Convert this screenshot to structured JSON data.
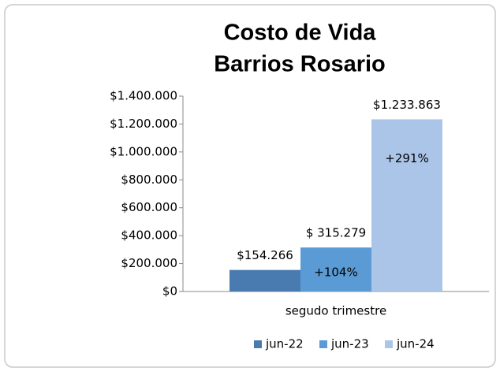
{
  "chart_data": {
    "type": "bar",
    "title": [
      "Costo de Vida",
      "Barrios Rosario"
    ],
    "categories": [
      "segudo trimestre"
    ],
    "series": [
      {
        "name": "jun-22",
        "color": "#4a7bb0",
        "values": [
          154266
        ],
        "value_labels": [
          "$154.266"
        ]
      },
      {
        "name": "jun-23",
        "color": "#5b9bd5",
        "values": [
          315279
        ],
        "value_labels": [
          "$ 315.279"
        ]
      },
      {
        "name": "jun-24",
        "color": "#abc5e8",
        "values": [
          1233863
        ],
        "value_labels": [
          "$1.233.863"
        ]
      }
    ],
    "annotations": [
      "+104%",
      "+291%"
    ],
    "ylim": [
      0,
      1400000
    ],
    "yticks": [
      {
        "value": 0,
        "label": "$0"
      },
      {
        "value": 200000,
        "label": "$200.000"
      },
      {
        "value": 400000,
        "label": "$400.000"
      },
      {
        "value": 600000,
        "label": "$600.000"
      },
      {
        "value": 800000,
        "label": "$800.000"
      },
      {
        "value": 1000000,
        "label": "$1.000.000"
      },
      {
        "value": 1200000,
        "label": "$1.200.000"
      },
      {
        "value": 1400000,
        "label": "$1.400.000"
      }
    ],
    "grid": false,
    "legend": "bottom"
  }
}
